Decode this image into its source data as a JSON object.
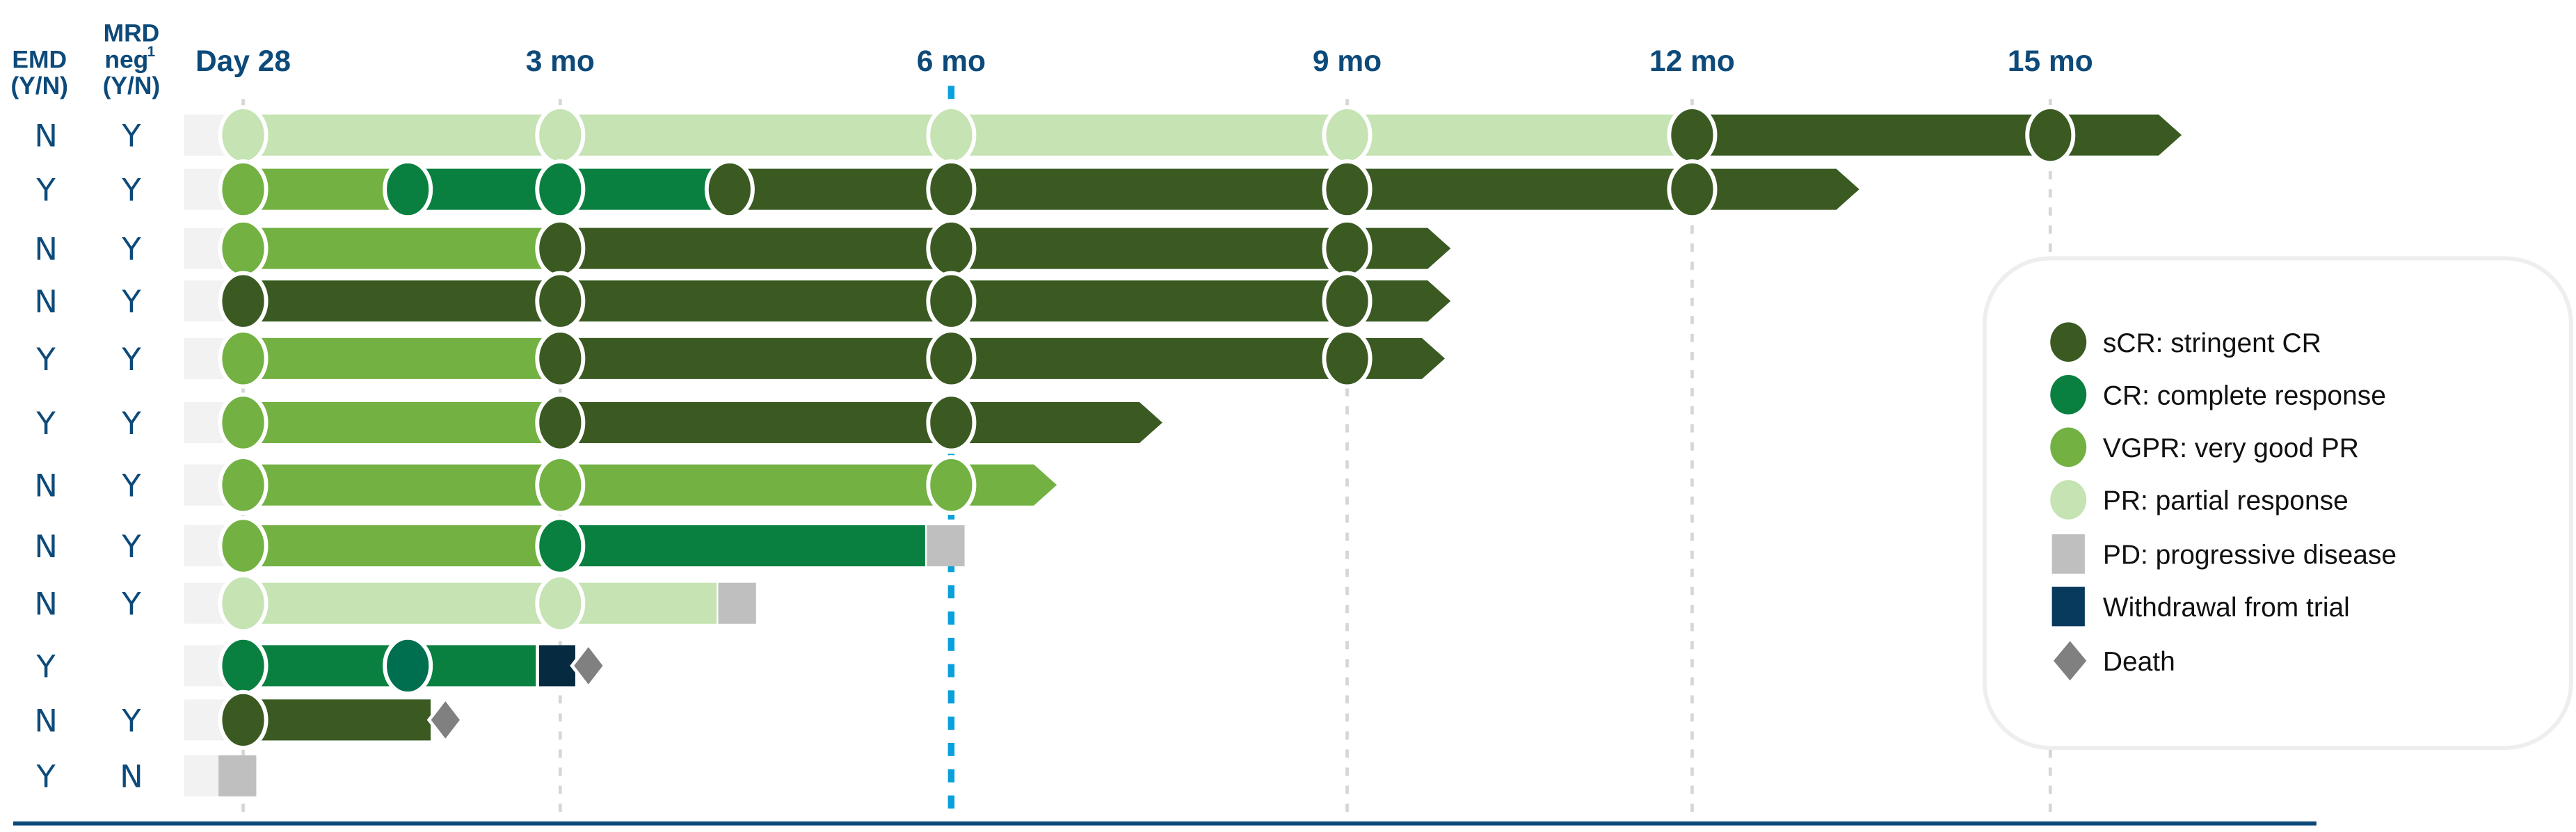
{
  "chart_data": {
    "type": "swimmer",
    "title": "",
    "columns": {
      "emd": {
        "line1": "EMD",
        "line2": "(Y/N)"
      },
      "mrd": {
        "line1": "MRD",
        "line2": "neg",
        "sup": "1",
        "line3": "(Y/N)"
      }
    },
    "x_ticks": [
      {
        "label": "Day 28",
        "months": 0.92
      },
      {
        "label": "3 mo",
        "months": 3
      },
      {
        "label": "6 mo",
        "months": 6,
        "highlight": true
      },
      {
        "label": "9 mo",
        "months": 9
      },
      {
        "label": "12 mo",
        "months": 12
      },
      {
        "label": "15 mo",
        "months": 15
      }
    ],
    "status_colors": {
      "sCR": "#3a5a22",
      "CR": "#0a8040",
      "VGPR": "#72b142",
      "PR": "#c5e3b3",
      "PD": "#bfbfbf",
      "Withdrawal": "#062a40",
      "Death": "#808080"
    },
    "legend": [
      {
        "key": "sCR",
        "label": "sCR: stringent CR",
        "shape": "circle"
      },
      {
        "key": "CR",
        "label": "CR: complete response",
        "shape": "circle"
      },
      {
        "key": "VGPR",
        "label": "VGPR: very good PR",
        "shape": "circle"
      },
      {
        "key": "PR",
        "label": "PR: partial response",
        "shape": "circle"
      },
      {
        "key": "PD",
        "label": "PD: progressive disease",
        "shape": "square"
      },
      {
        "key": "Withdrawal",
        "label": "Withdrawal from trial",
        "shape": "square"
      },
      {
        "key": "Death",
        "label": "Death",
        "shape": "diamond"
      }
    ],
    "rows": [
      {
        "emd": "N",
        "mrd": "Y",
        "assessments": [
          [
            0.92,
            "PR"
          ],
          [
            3,
            "PR"
          ],
          [
            6,
            "PR"
          ],
          [
            9,
            "PR"
          ],
          [
            12,
            "sCR"
          ],
          [
            15,
            "sCR"
          ]
        ],
        "end": {
          "months": 16.1,
          "events": [
            "ongoing"
          ]
        }
      },
      {
        "emd": "Y",
        "mrd": "Y",
        "assessments": [
          [
            0.92,
            "VGPR"
          ],
          [
            2,
            "CR"
          ],
          [
            3,
            "CR"
          ],
          [
            4.3,
            "sCR"
          ],
          [
            6,
            "sCR"
          ],
          [
            9,
            "sCR"
          ],
          [
            12,
            "sCR"
          ]
        ],
        "end": {
          "months": 13.4,
          "events": [
            "ongoing"
          ]
        }
      },
      {
        "emd": "N",
        "mrd": "Y",
        "assessments": [
          [
            0.92,
            "VGPR"
          ],
          [
            3,
            "sCR"
          ],
          [
            6,
            "sCR"
          ],
          [
            9,
            "sCR"
          ]
        ],
        "end": {
          "months": 9.9,
          "events": [
            "ongoing"
          ]
        }
      },
      {
        "emd": "N",
        "mrd": "Y",
        "assessments": [
          [
            0.92,
            "sCR"
          ],
          [
            3,
            "sCR"
          ],
          [
            6,
            "sCR"
          ],
          [
            9,
            "sCR"
          ]
        ],
        "end": {
          "months": 9.9,
          "events": [
            "ongoing"
          ]
        }
      },
      {
        "emd": "Y",
        "mrd": "Y",
        "assessments": [
          [
            0.92,
            "VGPR"
          ],
          [
            3,
            "sCR"
          ],
          [
            6,
            "sCR"
          ],
          [
            9,
            "sCR"
          ]
        ],
        "end": {
          "months": 9.85,
          "events": [
            "ongoing"
          ]
        }
      },
      {
        "emd": "Y",
        "mrd": "Y",
        "assessments": [
          [
            0.92,
            "VGPR"
          ],
          [
            3,
            "sCR"
          ],
          [
            6,
            "sCR"
          ]
        ],
        "end": {
          "months": 7.6,
          "events": [
            "ongoing"
          ]
        }
      },
      {
        "emd": "N",
        "mrd": "Y",
        "assessments": [
          [
            0.92,
            "VGPR"
          ],
          [
            3,
            "VGPR"
          ],
          [
            6,
            "VGPR"
          ]
        ],
        "end": {
          "months": 6.8,
          "events": [
            "ongoing"
          ]
        }
      },
      {
        "emd": "N",
        "mrd": "Y",
        "assessments": [
          [
            0.92,
            "VGPR"
          ],
          [
            3,
            "CR"
          ]
        ],
        "end": {
          "months": 5.8,
          "events": [
            "PD"
          ]
        }
      },
      {
        "emd": "N",
        "mrd": "Y",
        "assessments": [
          [
            0.92,
            "PR"
          ],
          [
            3,
            "PR"
          ]
        ],
        "end": {
          "months": 4.2,
          "events": [
            "PD"
          ]
        }
      },
      {
        "emd": "Y",
        "mrd": "",
        "assessments": [
          [
            0.92,
            "CR"
          ],
          [
            2,
            "CR"
          ]
        ],
        "end": {
          "months": 2.84,
          "events": [
            "Withdrawal",
            "Death"
          ]
        }
      },
      {
        "emd": "N",
        "mrd": "Y",
        "assessments": [
          [
            0.92,
            "sCR"
          ]
        ],
        "end": {
          "months": 2.15,
          "events": [
            "Death"
          ]
        }
      },
      {
        "emd": "Y",
        "mrd": "N",
        "assessments": [],
        "end": {
          "months": 0.92,
          "events": [
            "PD"
          ]
        }
      }
    ]
  }
}
